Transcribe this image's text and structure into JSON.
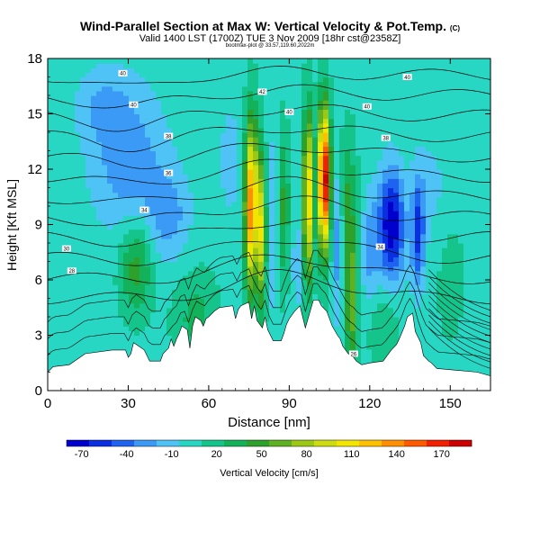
{
  "header": {
    "title": "Wind-Parallel Section at Max W: Vertical Velocity & Pot.Temp.",
    "title_suffix": "(C)",
    "subtitle": "Valid 1400 LST (1700Z) TUE 3 Nov 2009 [18hr cst@2358Z]",
    "subtitle2": "bootmax-plot @ 33.57,119.60,2022m"
  },
  "chart_data": {
    "type": "heatmap",
    "title": "Wind-Parallel Section at Max W: Vertical Velocity & Pot.Temp.",
    "xlabel": "Distance [nm]",
    "ylabel": "Height [Kft MSL]",
    "xlim": [
      0,
      165
    ],
    "ylim": [
      0,
      18
    ],
    "x_ticks": [
      0,
      30,
      60,
      90,
      120,
      150
    ],
    "y_ticks": [
      0,
      3,
      6,
      9,
      12,
      15,
      18
    ],
    "colorbar": {
      "label": "Vertical Velocity [cm/s]",
      "tick_labels": [
        "-70",
        "-40",
        "-10",
        "20",
        "50",
        "80",
        "110",
        "140",
        "170"
      ],
      "tick_values": [
        -70,
        -40,
        -10,
        20,
        50,
        80,
        110,
        140,
        170
      ],
      "range": [
        -80,
        190
      ],
      "colors": [
        "#0000cc",
        "#0a2fe0",
        "#1e63f0",
        "#3a9af5",
        "#4fc3f5",
        "#28d6c4",
        "#14c48a",
        "#13b25a",
        "#2ea12c",
        "#5fb022",
        "#9ac814",
        "#cddc10",
        "#f2e600",
        "#ffc000",
        "#ff8f00",
        "#ff5a00",
        "#f02000",
        "#cc0000"
      ]
    },
    "field": {
      "background_value": 5,
      "features": [
        {
          "x": 30,
          "y": 12.5,
          "w": 0.0,
          "sx": 14,
          "sy": 4,
          "amp": -35
        },
        {
          "x": 45,
          "y": 9.5,
          "w": 0.0,
          "sx": 8,
          "sy": 2.5,
          "amp": -30
        },
        {
          "x": 20,
          "y": 15.5,
          "w": 0.0,
          "sx": 10,
          "sy": 2,
          "amp": -20
        },
        {
          "x": 33,
          "y": 6.8,
          "w": 0.0,
          "sx": 6,
          "sy": 2.5,
          "amp": 45
        },
        {
          "x": 55,
          "y": 4,
          "w": 0.0,
          "sx": 8,
          "sy": 2.5,
          "amp": 25
        },
        {
          "x": 68,
          "y": 12.5,
          "w": 0.0,
          "sx": 5,
          "sy": 4,
          "amp": -15
        },
        {
          "x": 76,
          "y": 10,
          "w": 0.0,
          "sx": 2.6,
          "sy": 4.5,
          "amp": 140
        },
        {
          "x": 80,
          "y": 8.5,
          "w": 0.0,
          "sx": 1.3,
          "sy": 4,
          "amp": 90
        },
        {
          "x": 84,
          "y": 9,
          "w": 0.0,
          "sx": 1.6,
          "sy": 5,
          "amp": -25
        },
        {
          "x": 88,
          "y": 10,
          "w": 0.0,
          "sx": 2,
          "sy": 4,
          "amp": 40
        },
        {
          "x": 93,
          "y": 7,
          "w": 0.0,
          "sx": 2,
          "sy": 3,
          "amp": -20
        },
        {
          "x": 97,
          "y": 10.5,
          "w": 0.0,
          "sx": 1.8,
          "sy": 4.5,
          "amp": 120
        },
        {
          "x": 103,
          "y": 11.5,
          "w": 0.0,
          "sx": 2.2,
          "sy": 3.8,
          "amp": 185
        },
        {
          "x": 108,
          "y": 8,
          "w": 0.0,
          "sx": 1.8,
          "sy": 4,
          "amp": -35
        },
        {
          "x": 113,
          "y": 5,
          "w": 0.0,
          "sx": 2,
          "sy": 3.5,
          "amp": 70
        },
        {
          "x": 112,
          "y": 10.5,
          "w": 0.0,
          "sx": 3,
          "sy": 3.5,
          "amp": 35
        },
        {
          "x": 120,
          "y": 7.5,
          "w": 0.0,
          "sx": 3,
          "sy": 3,
          "amp": -30
        },
        {
          "x": 128,
          "y": 9,
          "w": 0.0,
          "sx": 5,
          "sy": 3,
          "amp": -85
        },
        {
          "x": 138,
          "y": 8.5,
          "w": 0.0,
          "sx": 2.5,
          "sy": 3,
          "amp": -60
        },
        {
          "x": 143,
          "y": 11,
          "w": 0.0,
          "sx": 6,
          "sy": 3,
          "amp": -15
        },
        {
          "x": 125,
          "y": 3.5,
          "w": 0.0,
          "sx": 6,
          "sy": 2,
          "amp": 20
        },
        {
          "x": 150,
          "y": 6,
          "w": 0.0,
          "sx": 6,
          "sy": 4,
          "amp": 10
        }
      ]
    },
    "terrain_kft": [
      [
        0,
        1.0
      ],
      [
        2,
        1.3
      ],
      [
        8,
        1.4
      ],
      [
        14,
        2.0
      ],
      [
        24,
        2.2
      ],
      [
        29,
        2.2
      ],
      [
        30,
        1.8
      ],
      [
        31,
        2.0
      ],
      [
        32,
        2.6
      ],
      [
        34,
        2.4
      ],
      [
        36,
        2.2
      ],
      [
        38,
        1.6
      ],
      [
        42,
        1.6
      ],
      [
        43,
        2.0
      ],
      [
        45,
        2.3
      ],
      [
        46,
        2.8
      ],
      [
        47,
        2.4
      ],
      [
        48,
        2.8
      ],
      [
        49,
        3.1
      ],
      [
        50,
        3.5
      ],
      [
        52,
        3.3
      ],
      [
        53,
        2.3
      ],
      [
        54,
        3.5
      ],
      [
        55,
        4.0
      ],
      [
        57,
        3.8
      ],
      [
        58,
        3.5
      ],
      [
        59,
        3.9
      ],
      [
        60,
        4.0
      ],
      [
        62,
        4.3
      ],
      [
        64,
        4.5
      ],
      [
        69,
        4.6
      ],
      [
        70,
        3.9
      ],
      [
        71,
        4.4
      ],
      [
        72,
        4.6
      ],
      [
        75,
        4.8
      ],
      [
        76,
        3.9
      ],
      [
        77,
        4.6
      ],
      [
        78,
        3.8
      ],
      [
        80,
        3.4
      ],
      [
        81,
        4.0
      ],
      [
        82,
        3.3
      ],
      [
        84,
        2.7
      ],
      [
        87,
        2.7
      ],
      [
        88,
        3.1
      ],
      [
        89,
        3.6
      ],
      [
        90,
        3.9
      ],
      [
        92,
        4.3
      ],
      [
        94,
        4.6
      ],
      [
        95,
        4.0
      ],
      [
        96,
        3.4
      ],
      [
        98,
        4.4
      ],
      [
        99,
        4.9
      ],
      [
        101,
        4.9
      ],
      [
        102,
        4.6
      ],
      [
        104,
        4.3
      ],
      [
        106,
        3.5
      ],
      [
        108,
        3.0
      ],
      [
        109,
        2.8
      ],
      [
        110,
        2.4
      ],
      [
        112,
        2.0
      ],
      [
        114,
        1.8
      ],
      [
        115,
        1.6
      ],
      [
        117,
        1.4
      ],
      [
        120,
        1.5
      ],
      [
        125,
        1.6
      ],
      [
        128,
        2.2
      ],
      [
        130,
        2.5
      ],
      [
        131,
        2.8
      ],
      [
        133,
        3.5
      ],
      [
        134,
        4.0
      ],
      [
        136,
        4.2
      ],
      [
        137,
        3.2
      ],
      [
        139,
        2.6
      ],
      [
        140,
        1.9
      ],
      [
        142,
        1.6
      ],
      [
        143,
        1.5
      ],
      [
        145,
        1.2
      ],
      [
        160,
        1.0
      ],
      [
        165,
        0.8
      ]
    ],
    "theta_contours": {
      "note": "potential temperature isolines, unlabeled except where labels shown",
      "labels": [
        {
          "text": "40",
          "x": 28,
          "y": 17.2
        },
        {
          "text": "40",
          "x": 32,
          "y": 15.5
        },
        {
          "text": "38",
          "x": 45,
          "y": 13.8
        },
        {
          "text": "36",
          "x": 45,
          "y": 11.8
        },
        {
          "text": "34",
          "x": 36,
          "y": 9.8
        },
        {
          "text": "30",
          "x": 7,
          "y": 7.7
        },
        {
          "text": "28",
          "x": 9,
          "y": 6.5
        },
        {
          "text": "42",
          "x": 80,
          "y": 16.2
        },
        {
          "text": "40",
          "x": 90,
          "y": 15.1
        },
        {
          "text": "40",
          "x": 119,
          "y": 15.4
        },
        {
          "text": "38",
          "x": 126,
          "y": 13.7
        },
        {
          "text": "40",
          "x": 134,
          "y": 17.0
        },
        {
          "text": "34",
          "x": 124,
          "y": 7.8
        },
        {
          "text": "26",
          "x": 114,
          "y": 2.0
        }
      ]
    }
  }
}
